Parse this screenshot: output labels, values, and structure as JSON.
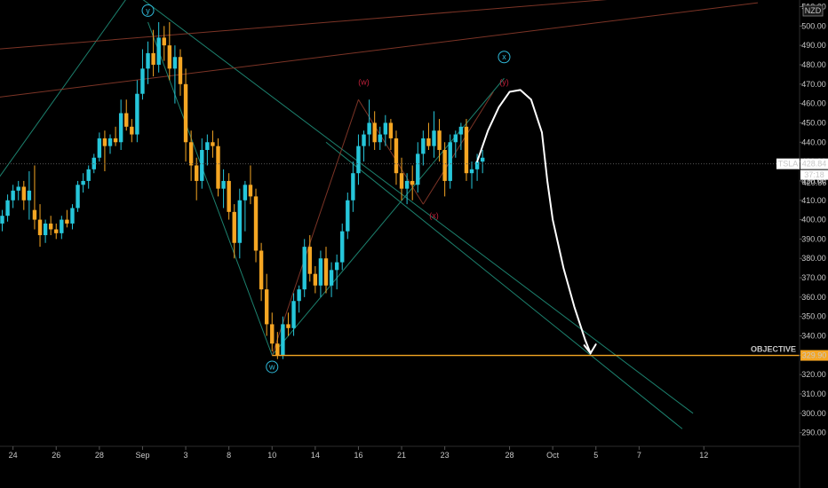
{
  "currency_badge": "NZD",
  "ticker_label": "TSLA",
  "last_price_label": "428.84",
  "countdown_label": "37:18",
  "extra_price_label": "420.86",
  "objective_text": "OBJECTIVE",
  "objective_price_label": "329.90",
  "colors": {
    "background": "#000000",
    "bull_candle": "#26c6da",
    "bear_candle": "#f5a623",
    "objective_line": "#f5a623",
    "trend_green": "#1f8f7a",
    "trend_brown": "#8a3a2a",
    "wave_label_cyan": "#2fb8d8",
    "wave_label_red": "#c0203a",
    "projection_path": "#ffffff"
  },
  "chart_data": {
    "type": "candlestick",
    "symbol": "TSLA",
    "currency": "NZD",
    "y_axis": {
      "side": "right",
      "min": 290,
      "max": 510,
      "ticks": [
        290,
        300,
        310,
        320,
        330,
        340,
        350,
        360,
        370,
        380,
        390,
        400,
        410,
        420,
        430,
        440,
        450,
        460,
        470,
        480,
        490,
        500,
        510
      ]
    },
    "x_axis": {
      "ticks": [
        {
          "label": "24",
          "bar": 2
        },
        {
          "label": "26",
          "bar": 10
        },
        {
          "label": "28",
          "bar": 18
        },
        {
          "label": "Sep",
          "bar": 26
        },
        {
          "label": "3",
          "bar": 34
        },
        {
          "label": "8",
          "bar": 42
        },
        {
          "label": "10",
          "bar": 50
        },
        {
          "label": "14",
          "bar": 58
        },
        {
          "label": "16",
          "bar": 66
        },
        {
          "label": "21",
          "bar": 74
        },
        {
          "label": "23",
          "bar": 82
        },
        {
          "label": "28",
          "bar": 94
        },
        {
          "label": "Oct",
          "bar": 102
        },
        {
          "label": "5",
          "bar": 110
        },
        {
          "label": "7",
          "bar": 118
        },
        {
          "label": "12",
          "bar": 130
        }
      ]
    },
    "candles": [
      [
        398,
        405,
        394,
        402
      ],
      [
        402,
        413,
        399,
        410
      ],
      [
        410,
        418,
        406,
        415
      ],
      [
        415,
        420,
        410,
        417
      ],
      [
        417,
        420,
        405,
        410
      ],
      [
        410,
        425,
        400,
        415
      ],
      [
        405,
        428,
        395,
        400
      ],
      [
        400,
        408,
        386,
        392
      ],
      [
        392,
        400,
        388,
        398
      ],
      [
        398,
        402,
        392,
        395
      ],
      [
        395,
        398,
        390,
        393
      ],
      [
        393,
        402,
        390,
        400
      ],
      [
        400,
        405,
        396,
        398
      ],
      [
        398,
        408,
        395,
        406
      ],
      [
        406,
        420,
        404,
        418
      ],
      [
        418,
        424,
        414,
        420
      ],
      [
        420,
        428,
        416,
        426
      ],
      [
        426,
        434,
        424,
        432
      ],
      [
        432,
        445,
        430,
        442
      ],
      [
        442,
        446,
        425,
        438
      ],
      [
        438,
        444,
        434,
        442
      ],
      [
        442,
        448,
        438,
        440
      ],
      [
        440,
        462,
        436,
        455
      ],
      [
        455,
        462,
        446,
        448
      ],
      [
        448,
        452,
        440,
        444
      ],
      [
        444,
        472,
        440,
        465
      ],
      [
        465,
        488,
        462,
        478
      ],
      [
        478,
        492,
        470,
        486
      ],
      [
        486,
        498,
        474,
        480
      ],
      [
        480,
        502,
        476,
        494
      ],
      [
        494,
        500,
        482,
        490
      ],
      [
        490,
        502,
        472,
        478
      ],
      [
        478,
        490,
        460,
        484
      ],
      [
        484,
        488,
        464,
        470
      ],
      [
        470,
        478,
        430,
        440
      ],
      [
        440,
        446,
        420,
        428
      ],
      [
        428,
        432,
        410,
        420
      ],
      [
        420,
        442,
        416,
        436
      ],
      [
        436,
        444,
        428,
        440
      ],
      [
        440,
        446,
        432,
        438
      ],
      [
        438,
        442,
        412,
        416
      ],
      [
        416,
        426,
        406,
        420
      ],
      [
        420,
        424,
        400,
        404
      ],
      [
        404,
        408,
        380,
        388
      ],
      [
        388,
        416,
        380,
        410
      ],
      [
        410,
        420,
        394,
        418
      ],
      [
        418,
        428,
        408,
        412
      ],
      [
        412,
        416,
        378,
        384
      ],
      [
        384,
        388,
        358,
        364
      ],
      [
        364,
        372,
        340,
        346
      ],
      [
        346,
        352,
        332,
        336
      ],
      [
        336,
        342,
        328,
        330
      ],
      [
        330,
        350,
        328,
        346
      ],
      [
        346,
        352,
        340,
        344
      ],
      [
        344,
        362,
        340,
        358
      ],
      [
        358,
        366,
        352,
        364
      ],
      [
        364,
        390,
        360,
        386
      ],
      [
        386,
        392,
        368,
        372
      ],
      [
        372,
        376,
        362,
        366
      ],
      [
        366,
        384,
        360,
        380
      ],
      [
        380,
        386,
        362,
        366
      ],
      [
        366,
        378,
        360,
        374
      ],
      [
        374,
        382,
        364,
        378
      ],
      [
        378,
        398,
        374,
        394
      ],
      [
        394,
        414,
        390,
        410
      ],
      [
        410,
        430,
        404,
        424
      ],
      [
        424,
        444,
        418,
        438
      ],
      [
        438,
        446,
        430,
        444
      ],
      [
        444,
        462,
        438,
        450
      ],
      [
        450,
        456,
        436,
        440
      ],
      [
        440,
        448,
        436,
        444
      ],
      [
        444,
        454,
        438,
        450
      ],
      [
        450,
        452,
        436,
        442
      ],
      [
        442,
        446,
        418,
        424
      ],
      [
        424,
        432,
        410,
        416
      ],
      [
        416,
        424,
        408,
        420
      ],
      [
        420,
        428,
        410,
        418
      ],
      [
        418,
        440,
        414,
        434
      ],
      [
        434,
        446,
        428,
        442
      ],
      [
        442,
        450,
        436,
        438
      ],
      [
        438,
        456,
        432,
        446
      ],
      [
        446,
        452,
        430,
        436
      ],
      [
        436,
        440,
        412,
        420
      ],
      [
        420,
        444,
        416,
        440
      ],
      [
        440,
        446,
        432,
        444
      ],
      [
        444,
        450,
        436,
        448
      ],
      [
        448,
        452,
        420,
        424
      ],
      [
        424,
        430,
        416,
        426
      ],
      [
        426,
        434,
        420,
        430
      ],
      [
        430,
        436,
        424,
        432
      ]
    ],
    "trend_lines": [
      {
        "name": "outer-channel-top",
        "color": "trend_green",
        "points": [
          [
            -10,
            385
          ],
          [
            24,
            518
          ]
        ]
      },
      {
        "name": "outer-channel-descent",
        "color": "trend_green",
        "points": [
          [
            24,
            518
          ],
          [
            128,
            300
          ]
        ]
      },
      {
        "name": "upper-brown",
        "color": "trend_brown",
        "points": [
          [
            -10,
            486
          ],
          [
            140,
            520
          ]
        ]
      },
      {
        "name": "lower-brown",
        "color": "trend_brown",
        "points": [
          [
            -10,
            460
          ],
          [
            140,
            512
          ]
        ]
      },
      {
        "name": "y-to-w-leg",
        "color": "trend_green",
        "points": [
          [
            27,
            502
          ],
          [
            50,
            330
          ]
        ]
      },
      {
        "name": "w-to-x-leg",
        "color": "trend_green",
        "points": [
          [
            50,
            330
          ],
          [
            93,
            473
          ]
        ]
      },
      {
        "name": "lower-descent",
        "color": "trend_green",
        "points": [
          [
            60,
            440
          ],
          [
            126,
            292
          ]
        ]
      },
      {
        "name": "inner-w-leg",
        "color": "trend_brown",
        "points": [
          [
            50,
            330
          ],
          [
            66,
            462
          ]
        ]
      },
      {
        "name": "inner-x-leg",
        "color": "trend_brown",
        "points": [
          [
            66,
            462
          ],
          [
            78,
            408
          ]
        ]
      },
      {
        "name": "inner-y-leg",
        "color": "trend_brown",
        "points": [
          [
            78,
            408
          ],
          [
            91,
            466
          ]
        ]
      }
    ],
    "wave_labels": [
      {
        "text": "y",
        "style": "circle",
        "color": "wave_label_cyan",
        "bar": 27,
        "price": 508
      },
      {
        "text": "w",
        "style": "circle",
        "color": "wave_label_cyan",
        "bar": 50,
        "price": 324
      },
      {
        "text": "x",
        "style": "circle",
        "color": "wave_label_cyan",
        "bar": 93,
        "price": 484
      },
      {
        "text": "(w)",
        "style": "plain",
        "color": "wave_label_red",
        "bar": 67,
        "price": 471
      },
      {
        "text": "(x)",
        "style": "plain",
        "color": "wave_label_red",
        "bar": 80,
        "price": 402
      },
      {
        "text": "(y)",
        "style": "plain",
        "color": "wave_label_red",
        "bar": 93,
        "price": 471
      }
    ],
    "objective_price": 329.9,
    "last_price": 428.84,
    "projection": {
      "description": "hand-drawn arrow",
      "points": [
        [
          88,
          430
        ],
        [
          90,
          446
        ],
        [
          92,
          458
        ],
        [
          94,
          466
        ],
        [
          96,
          467
        ],
        [
          98,
          462
        ],
        [
          100,
          445
        ],
        [
          101,
          420
        ],
        [
          102,
          400
        ],
        [
          104,
          375
        ],
        [
          106,
          355
        ],
        [
          108,
          338
        ],
        [
          109,
          331
        ]
      ]
    }
  }
}
